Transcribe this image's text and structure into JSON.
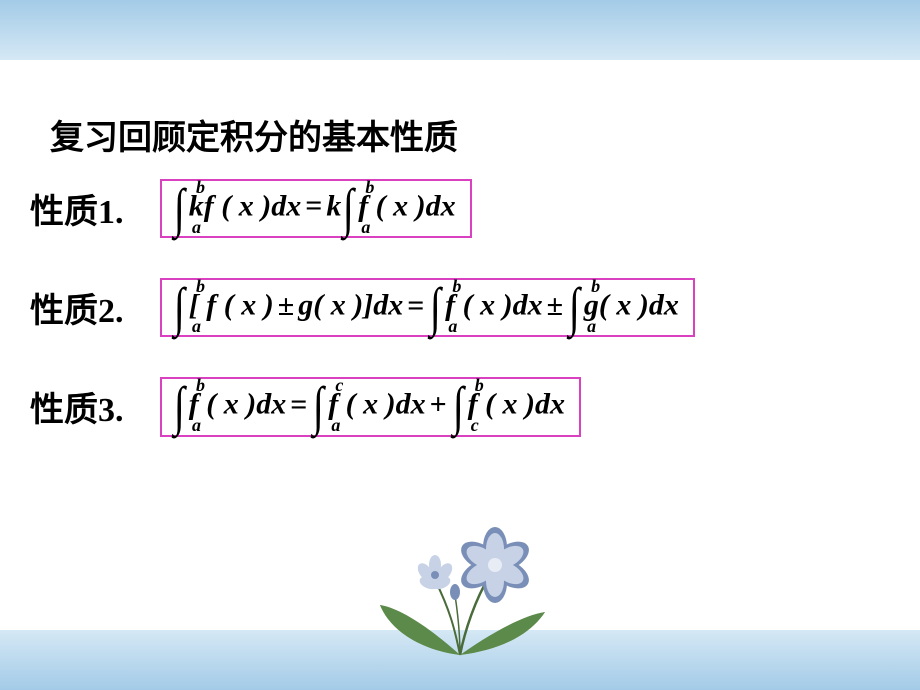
{
  "colors": {
    "bar_gradient_top": "#a3cbe7",
    "bar_gradient_bottom": "#d5e8f5",
    "border_magenta": "#d941c1",
    "text": "#000000",
    "flower_petal": "#7a8fb8",
    "flower_petal_light": "#c7d2e6",
    "flower_leaf": "#5c8a4a",
    "flower_leaf_light": "#8ab573",
    "flower_stem": "#4a6b3a"
  },
  "title": "复习回顾定积分的基本性质",
  "properties": [
    {
      "label": "性质1.",
      "formula": {
        "segments": [
          {
            "type": "int",
            "lower": "a",
            "upper": "b"
          },
          {
            "type": "text",
            "val": "kf ( x )dx"
          },
          {
            "type": "op",
            "val": "="
          },
          {
            "type": "text",
            "val": "k"
          },
          {
            "type": "int",
            "lower": "a",
            "upper": "b"
          },
          {
            "type": "text",
            "val": "f ( x )dx"
          }
        ]
      }
    },
    {
      "label": "性质2.",
      "formula": {
        "segments": [
          {
            "type": "int",
            "lower": "a",
            "upper": "b"
          },
          {
            "type": "text",
            "val": "[ f ( x )"
          },
          {
            "type": "op",
            "val": "±"
          },
          {
            "type": "text",
            "val": "g( x )]dx"
          },
          {
            "type": "op",
            "val": "="
          },
          {
            "type": "int",
            "lower": "a",
            "upper": "b"
          },
          {
            "type": "text",
            "val": "f ( x )dx"
          },
          {
            "type": "op",
            "val": "±"
          },
          {
            "type": "int",
            "lower": "a",
            "upper": "b"
          },
          {
            "type": "text",
            "val": "g( x )dx"
          }
        ]
      }
    },
    {
      "label": "性质3.",
      "formula": {
        "segments": [
          {
            "type": "int",
            "lower": "a",
            "upper": "b"
          },
          {
            "type": "text",
            "val": "f ( x )dx"
          },
          {
            "type": "op",
            "val": "="
          },
          {
            "type": "int",
            "lower": "a",
            "upper": "c"
          },
          {
            "type": "text",
            "val": "f ( x )dx"
          },
          {
            "type": "op",
            "val": "+"
          },
          {
            "type": "int",
            "lower": "c",
            "upper": "b"
          },
          {
            "type": "text",
            "val": "f ( x )dx"
          }
        ]
      }
    }
  ]
}
